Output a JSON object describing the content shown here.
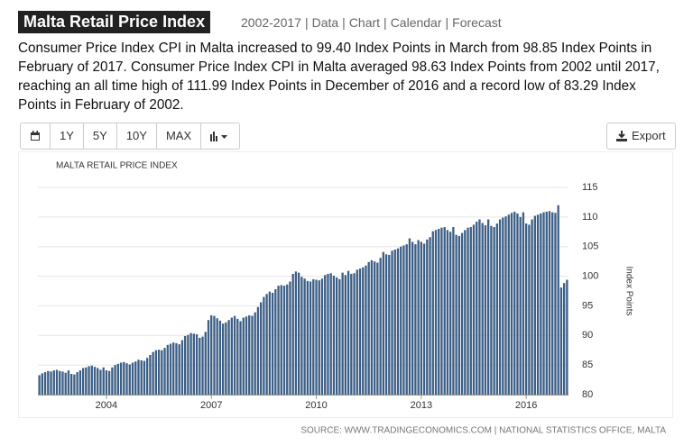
{
  "header": {
    "title": "Malta Retail Price Index",
    "nav": [
      "2002-2017",
      "Data",
      "Chart",
      "Calendar",
      "Forecast"
    ],
    "nav_separator": "|"
  },
  "summary": "Consumer Price Index CPI in Malta increased to 99.40 Index Points in March from 98.85 Index Points in February of 2017. Consumer Price Index CPI in Malta averaged 98.63 Index Points from 2002 until 2017, reaching an all time high of 111.99 Index Points in December of 2016 and a record low of 83.29 Index Points in February of 2002.",
  "toolbar": {
    "buttons": [
      "1Y",
      "5Y",
      "10Y",
      "MAX"
    ],
    "export": "Export"
  },
  "chart_data": {
    "type": "bar",
    "title": "MALTA RETAIL PRICE INDEX",
    "y_label": "Index Points",
    "categories": [
      null,
      null,
      null,
      null,
      null,
      null,
      null,
      null,
      null,
      null,
      null,
      null,
      null,
      null,
      null,
      null,
      null,
      null,
      null,
      null,
      null,
      null,
      null,
      "2004",
      null,
      null,
      null,
      null,
      null,
      null,
      null,
      null,
      null,
      null,
      null,
      null,
      null,
      null,
      null,
      null,
      null,
      null,
      null,
      null,
      null,
      null,
      null,
      null,
      null,
      null,
      null,
      null,
      null,
      null,
      null,
      null,
      null,
      null,
      null,
      "2007",
      null,
      null,
      null,
      null,
      null,
      null,
      null,
      null,
      null,
      null,
      null,
      null,
      null,
      null,
      null,
      null,
      null,
      null,
      null,
      null,
      null,
      null,
      null,
      null,
      null,
      null,
      null,
      null,
      null,
      null,
      null,
      null,
      null,
      null,
      null,
      "2010",
      null,
      null,
      null,
      null,
      null,
      null,
      null,
      null,
      null,
      null,
      null,
      null,
      null,
      null,
      null,
      null,
      null,
      null,
      null,
      null,
      null,
      null,
      null,
      null,
      null,
      null,
      null,
      null,
      null,
      null,
      null,
      null,
      null,
      null,
      null,
      "2013",
      null,
      null,
      null,
      null,
      null,
      null,
      null,
      null,
      null,
      null,
      null,
      null,
      null,
      null,
      null,
      null,
      null,
      null,
      null,
      null,
      null,
      null,
      null,
      null,
      null,
      null,
      null,
      null,
      null,
      null,
      null,
      null,
      null,
      null,
      null,
      "2016",
      null,
      null,
      null,
      null,
      null,
      null,
      null,
      null,
      null,
      null,
      null,
      null,
      null,
      null
    ],
    "values": [
      83.29,
      83.6,
      83.8,
      84.0,
      83.9,
      84.1,
      84.2,
      84.0,
      83.9,
      83.7,
      84.1,
      83.5,
      83.4,
      83.8,
      84.1,
      84.5,
      84.6,
      84.8,
      84.9,
      84.7,
      84.5,
      84.2,
      84.6,
      84.1,
      84.0,
      84.6,
      85.0,
      85.2,
      85.4,
      85.5,
      85.3,
      85.1,
      85.4,
      85.6,
      85.9,
      85.8,
      85.7,
      86.2,
      86.7,
      87.2,
      87.5,
      87.6,
      87.5,
      87.9,
      88.4,
      88.6,
      88.8,
      88.7,
      88.5,
      89.2,
      89.9,
      90.1,
      90.4,
      90.3,
      90.2,
      89.6,
      89.8,
      90.6,
      92.6,
      93.4,
      93.3,
      92.9,
      92.5,
      92.0,
      92.2,
      92.6,
      93.0,
      93.3,
      92.8,
      92.4,
      93.0,
      93.2,
      93.4,
      93.3,
      93.9,
      94.8,
      95.6,
      96.5,
      97.0,
      97.4,
      97.2,
      97.8,
      98.4,
      98.5,
      98.4,
      98.6,
      99.1,
      100.4,
      100.8,
      100.6,
      99.9,
      99.6,
      99.2,
      99.1,
      99.5,
      99.4,
      99.3,
      99.6,
      100.2,
      100.4,
      100.5,
      100.1,
      99.8,
      99.5,
      100.6,
      100.2,
      100.9,
      100.4,
      100.5,
      101.1,
      101.3,
      101.5,
      101.8,
      102.4,
      102.7,
      102.5,
      102.3,
      103.1,
      104.1,
      103.7,
      103.6,
      104.3,
      104.5,
      104.7,
      105.0,
      105.2,
      105.4,
      106.4,
      105.8,
      105.4,
      106.1,
      105.8,
      105.5,
      106.2,
      106.6,
      107.6,
      107.8,
      108.0,
      108.2,
      108.3,
      107.8,
      107.5,
      108.3,
      107.0,
      106.8,
      107.3,
      107.8,
      108.2,
      108.3,
      108.7,
      109.2,
      109.6,
      109.0,
      108.6,
      109.6,
      108.5,
      108.3,
      108.9,
      109.6,
      109.9,
      110.1,
      110.4,
      110.7,
      110.9,
      110.6,
      110.0,
      110.8,
      108.9,
      108.7,
      109.6,
      110.2,
      110.4,
      110.6,
      110.8,
      110.9,
      111.0,
      110.8,
      110.7,
      111.99,
      98.1,
      98.85,
      99.4
    ],
    "color": "#3d5f86",
    "ylim": [
      80,
      115
    ],
    "yticks": [
      80,
      85,
      90,
      95,
      100,
      105,
      110,
      115
    ],
    "grid": true,
    "y_axis_side": "right"
  },
  "source": "SOURCE: WWW.TRADINGECONOMICS.COM | NATIONAL STATISTICS OFFICE, MALTA"
}
